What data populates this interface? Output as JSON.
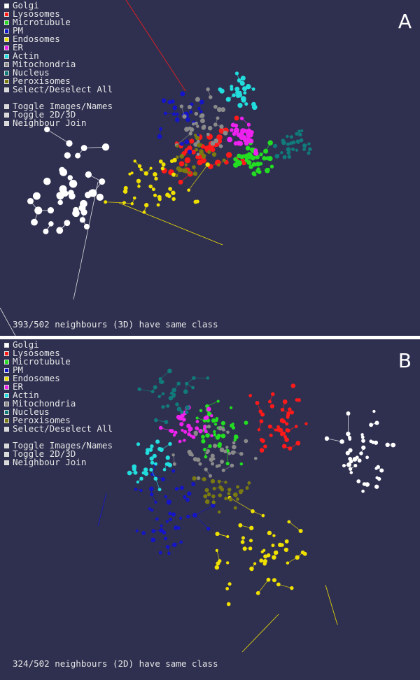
{
  "legend_items": [
    {
      "label": "Golgi",
      "color": "#ffffff"
    },
    {
      "label": "Lysosomes",
      "color": "#ff1a1a"
    },
    {
      "label": "Microtubule",
      "color": "#22dd22"
    },
    {
      "label": "PM",
      "color": "#1414c8"
    },
    {
      "label": "Endosomes",
      "color": "#f0e000"
    },
    {
      "label": "ER",
      "color": "#ee22ee"
    },
    {
      "label": "Actin",
      "color": "#22dddd"
    },
    {
      "label": "Mitochondria",
      "color": "#8a8a8a"
    },
    {
      "label": "Nucleus",
      "color": "#117a7a"
    },
    {
      "label": "Peroxisomes",
      "color": "#7a7a10"
    }
  ],
  "controls": {
    "select_all": "Select/Deselect All",
    "toggle_images": "Toggle Images/Names",
    "toggle_dim": "Toggle 2D/3D",
    "neighbour_join": "Neighbour Join"
  },
  "panel_a": {
    "letter": "A",
    "status": "393/502 neighbours (3D) have same class"
  },
  "panel_b": {
    "letter": "B",
    "status": "324/502 neighbours (2D) have same class"
  },
  "chart_data": [
    {
      "type": "scatter",
      "panel": "A",
      "projection": "3D",
      "total_points": 502,
      "same_class_neighbours": 393,
      "neighbour_join_links": true,
      "grid": false,
      "legend_placement": "top-left",
      "classes": [
        "Golgi",
        "Lysosomes",
        "Microtubule",
        "PM",
        "Endosomes",
        "ER",
        "Actin",
        "Mitochondria",
        "Nucleus",
        "Peroxisomes"
      ]
    },
    {
      "type": "scatter",
      "panel": "B",
      "projection": "2D",
      "total_points": 502,
      "same_class_neighbours": 324,
      "neighbour_join_links": true,
      "grid": false,
      "legend_placement": "top-left",
      "classes": [
        "Golgi",
        "Lysosomes",
        "Microtubule",
        "PM",
        "Endosomes",
        "ER",
        "Actin",
        "Mitochondria",
        "Nucleus",
        "Peroxisomes"
      ]
    }
  ]
}
